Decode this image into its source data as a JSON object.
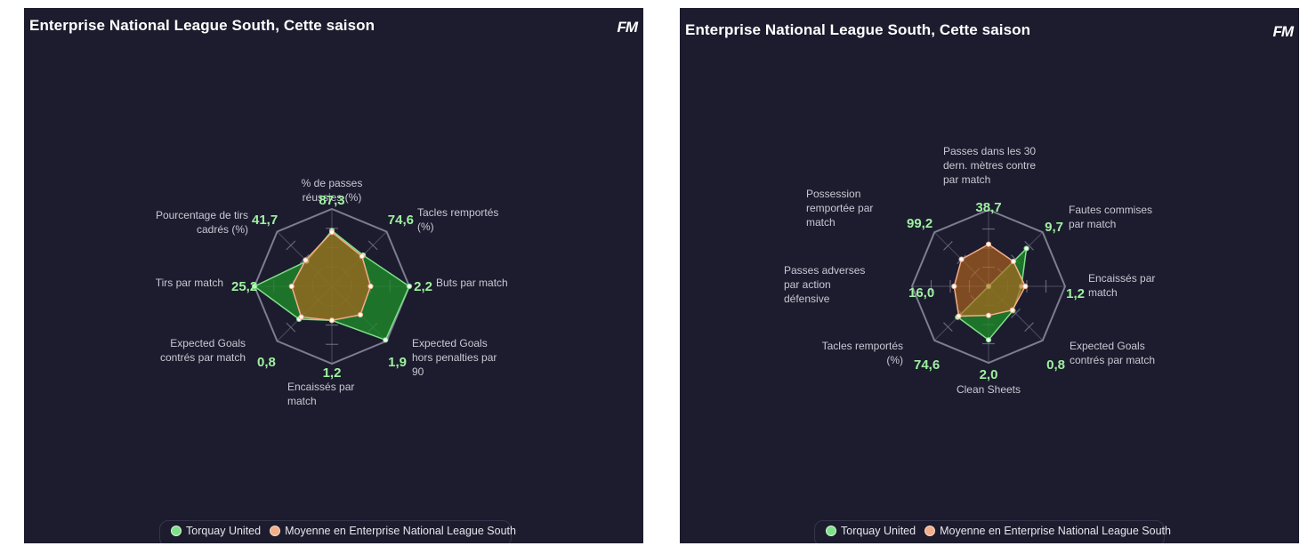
{
  "colors": {
    "background": "#1c1c2e",
    "grid": "#7c7c92",
    "team": "#7fe089",
    "team_fill": "#1f8a2a",
    "average": "#f2ae8a",
    "average_fill": "#b5651d",
    "value_text": "#9ff0a0"
  },
  "logo": "FM",
  "chart_data": [
    {
      "type": "radar",
      "title": "Enterprise National League South, Cette saison",
      "axes": [
        {
          "label": [
            "% de passes",
            "réussies (%)"
          ],
          "value_label": "87,3"
        },
        {
          "label": [
            "Tacles remportés",
            "(%)"
          ],
          "value_label": "74,6"
        },
        {
          "label": [
            "Buts par match"
          ],
          "value_label": "2,2"
        },
        {
          "label": [
            "Expected Goals",
            "hors penalties par",
            "90"
          ],
          "value_label": "1,9"
        },
        {
          "label": [
            "Encaissés par",
            "match"
          ],
          "value_label": "1,2"
        },
        {
          "label": [
            "Expected Goals",
            "contrés par match"
          ],
          "value_label": "0,8"
        },
        {
          "label": [
            "Tirs par match"
          ],
          "value_label": "25,2"
        },
        {
          "label": [
            "Pourcentage de tirs",
            "cadrés (%)"
          ],
          "value_label": "41,7"
        }
      ],
      "series": [
        {
          "name": "Torquay United",
          "values": [
            0.72,
            0.57,
            1.0,
            0.98,
            0.44,
            0.6,
            1.0,
            0.46
          ]
        },
        {
          "name": "Moyenne en Enterprise National League South",
          "values": [
            0.7,
            0.55,
            0.5,
            0.52,
            0.44,
            0.56,
            0.52,
            0.48
          ]
        }
      ],
      "range": [
        0,
        1
      ],
      "rings": 4,
      "legend": "bottom"
    },
    {
      "type": "radar",
      "title": "Enterprise National League South, Cette saison",
      "axes": [
        {
          "label": [
            "Passes dans les 30",
            "dern. mètres contre",
            "par match"
          ],
          "value_label": "38,7"
        },
        {
          "label": [
            "Fautes commises",
            "par match"
          ],
          "value_label": "9,7"
        },
        {
          "label": [
            "Encaissés par",
            "match"
          ],
          "value_label": "1,2"
        },
        {
          "label": [
            "Expected Goals",
            "contrés par match"
          ],
          "value_label": "0,8"
        },
        {
          "label": [
            "Clean Sheets"
          ],
          "value_label": "2,0"
        },
        {
          "label": [
            "Tacles remportés",
            "(%)"
          ],
          "value_label": "74,6"
        },
        {
          "label": [
            "Passes adverses",
            "par action",
            "défensive"
          ],
          "value_label": "16,0"
        },
        {
          "label": [
            "Possession",
            "remportée par",
            "match"
          ],
          "value_label": "99,2"
        }
      ],
      "series": [
        {
          "name": "Torquay United",
          "values": [
            0.0,
            0.7,
            0.43,
            0.45,
            0.7,
            0.57,
            0.0,
            0.0
          ]
        },
        {
          "name": "Moyenne en Enterprise National League South",
          "values": [
            0.55,
            0.46,
            0.48,
            0.44,
            0.38,
            0.55,
            0.45,
            0.5
          ]
        }
      ],
      "range": [
        0,
        1
      ],
      "rings": 4,
      "legend": "bottom"
    }
  ],
  "legend_items": [
    {
      "label": "Torquay United"
    },
    {
      "label": "Moyenne en Enterprise National League South"
    }
  ]
}
